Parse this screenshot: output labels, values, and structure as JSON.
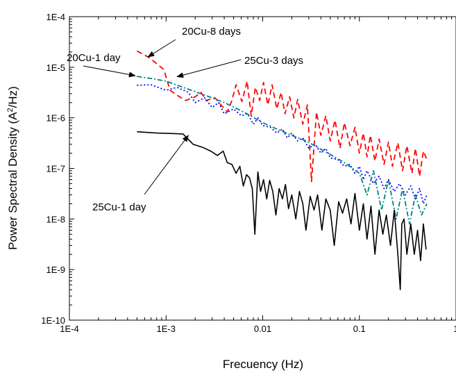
{
  "chart_data": {
    "type": "line",
    "xlabel": "Frecuency (Hz)",
    "ylabel": "Power Spectral Density (A²/Hz)",
    "ylabel_base": "Power Spectral Density (A",
    "ylabel_sup": "2",
    "ylabel_tail": "/Hz)",
    "xscale": "log",
    "yscale": "log",
    "xlim": [
      0.0001,
      1
    ],
    "ylim": [
      1e-10,
      0.0001
    ],
    "grid": false,
    "x_ticks": [
      {
        "value": 0.0001,
        "label": "1E-4"
      },
      {
        "value": 0.001,
        "label": "1E-3"
      },
      {
        "value": 0.01,
        "label": "0.01"
      },
      {
        "value": 0.1,
        "label": "0.1"
      },
      {
        "value": 1,
        "label": "1"
      }
    ],
    "y_ticks": [
      {
        "value": 1e-10,
        "label": "1E-10"
      },
      {
        "value": 1e-09,
        "label": "1E-9"
      },
      {
        "value": 1e-08,
        "label": "1E-8"
      },
      {
        "value": 1e-07,
        "label": "1E-7"
      },
      {
        "value": 1e-06,
        "label": "1E-6"
      },
      {
        "value": 1e-05,
        "label": "1E-5"
      },
      {
        "value": 0.0001,
        "label": "1E-4"
      }
    ],
    "series": [
      {
        "name": "20Cu-8 days",
        "color": "#ff0000",
        "dash": "dash",
        "x": [
          0.0005,
          0.00065,
          0.00075,
          0.00095,
          0.0011,
          0.0013,
          0.0016,
          0.002,
          0.0023,
          0.0026,
          0.0032,
          0.0037,
          0.0043,
          0.0048,
          0.0053,
          0.0061,
          0.0069,
          0.0076,
          0.0084,
          0.0093,
          0.0102,
          0.0113,
          0.0125,
          0.014,
          0.0155,
          0.017,
          0.019,
          0.021,
          0.023,
          0.026,
          0.029,
          0.032,
          0.036,
          0.04,
          0.045,
          0.05,
          0.056,
          0.063,
          0.07,
          0.08,
          0.09,
          0.1,
          0.11,
          0.12,
          0.13,
          0.145,
          0.16,
          0.18,
          0.2,
          0.22,
          0.25,
          0.28,
          0.31,
          0.35,
          0.38,
          0.42,
          0.46,
          0.5
        ],
        "y": [
          2.1e-05,
          1.6e-05,
          1.3e-05,
          9e-06,
          3.5e-06,
          2.8e-06,
          2.2e-06,
          2.6e-06,
          3.2e-06,
          2.2e-06,
          2.5e-06,
          1.8e-06,
          1.3e-06,
          2.2e-06,
          4.5e-06,
          2.1e-06,
          5.3e-06,
          1.1e-06,
          4e-06,
          2.2e-06,
          5e-06,
          1.8e-06,
          4.5e-06,
          1.5e-06,
          3.2e-06,
          1.2e-06,
          2.6e-06,
          1e-06,
          2.3e-06,
          7.5e-07,
          1.8e-06,
          5.5e-08,
          1.3e-06,
          4.5e-07,
          1.1e-06,
          3.5e-07,
          9e-07,
          2.5e-07,
          8e-07,
          2.8e-07,
          6.5e-07,
          2e-07,
          5e-07,
          1.7e-07,
          4.5e-07,
          1.4e-07,
          3.8e-07,
          1.2e-07,
          3.3e-07,
          1.1e-07,
          3.2e-07,
          9e-08,
          2.8e-07,
          8e-08,
          2.5e-07,
          7e-08,
          2.2e-07,
          1.5e-07
        ]
      },
      {
        "name": "25Cu-3 days",
        "color": "#0000ff",
        "dash": "dot",
        "x": [
          0.0005,
          0.0007,
          0.001,
          0.0013,
          0.0017,
          0.002,
          0.0025,
          0.003,
          0.0035,
          0.004,
          0.005,
          0.006,
          0.007,
          0.008,
          0.009,
          0.01,
          0.012,
          0.014,
          0.016,
          0.018,
          0.02,
          0.023,
          0.026,
          0.03,
          0.035,
          0.04,
          0.045,
          0.05,
          0.06,
          0.07,
          0.08,
          0.09,
          0.1,
          0.11,
          0.12,
          0.14,
          0.16,
          0.18,
          0.2,
          0.23,
          0.26,
          0.3,
          0.34,
          0.38,
          0.42,
          0.46,
          0.5
        ],
        "y": [
          4.4e-06,
          4.5e-06,
          3.5e-06,
          4e-06,
          3.2e-06,
          2e-06,
          2.5e-06,
          1.6e-06,
          2e-06,
          1.2e-06,
          1.5e-06,
          1.1e-06,
          1.2e-06,
          7.5e-07,
          1e-06,
          7e-07,
          6.5e-07,
          5e-07,
          6e-07,
          4e-07,
          5e-07,
          3.5e-07,
          4e-07,
          2.5e-07,
          3e-07,
          2e-07,
          2.5e-07,
          1.6e-07,
          1.5e-07,
          1.1e-07,
          1.2e-07,
          8e-08,
          1.1e-07,
          6e-08,
          9e-08,
          5e-08,
          7e-08,
          4e-08,
          6e-08,
          3.5e-08,
          5e-08,
          3e-08,
          4.5e-08,
          2.5e-08,
          4e-08,
          2e-08,
          3e-08
        ]
      },
      {
        "name": "20Cu-1 day",
        "color": "#008080",
        "dash": "dashdot",
        "x": [
          0.0005,
          0.0007,
          0.001,
          0.0014,
          0.002,
          0.0028,
          0.004,
          0.0055,
          0.0075,
          0.01,
          0.014,
          0.02,
          0.028,
          0.04,
          0.055,
          0.07,
          0.085,
          0.1,
          0.12,
          0.14,
          0.17,
          0.2,
          0.24,
          0.28,
          0.33,
          0.38,
          0.44,
          0.5
        ],
        "y": [
          6.6e-06,
          6e-06,
          5.3e-06,
          4.2e-06,
          3.3e-06,
          2.6e-06,
          2e-06,
          1.5e-06,
          1.1e-06,
          8e-07,
          6e-07,
          4.5e-07,
          3.5e-07,
          2.4e-07,
          1.7e-07,
          1.3e-07,
          1e-07,
          8e-08,
          3e-08,
          9e-08,
          1.5e-08,
          6e-08,
          1e-08,
          4e-08,
          8e-09,
          3e-08,
          1.2e-08,
          2e-08
        ]
      },
      {
        "name": "25Cu-1 day",
        "color": "#000000",
        "dash": "solid",
        "x": [
          0.0005,
          0.0008,
          0.0011,
          0.0015,
          0.0019,
          0.0024,
          0.0029,
          0.0034,
          0.0039,
          0.0043,
          0.0048,
          0.0053,
          0.0058,
          0.0063,
          0.0068,
          0.0073,
          0.0078,
          0.0083,
          0.0089,
          0.0095,
          0.0102,
          0.011,
          0.0118,
          0.0127,
          0.0137,
          0.0148,
          0.016,
          0.0172,
          0.0185,
          0.02,
          0.022,
          0.024,
          0.026,
          0.028,
          0.031,
          0.034,
          0.037,
          0.041,
          0.045,
          0.05,
          0.055,
          0.061,
          0.067,
          0.074,
          0.082,
          0.09,
          0.1,
          0.11,
          0.12,
          0.132,
          0.145,
          0.16,
          0.175,
          0.19,
          0.21,
          0.23,
          0.25,
          0.265,
          0.275,
          0.29,
          0.31,
          0.34,
          0.37,
          0.4,
          0.43,
          0.46,
          0.49
        ],
        "y": [
          5.3e-07,
          5e-07,
          4.9e-07,
          4.8e-07,
          3e-07,
          2.6e-07,
          2.2e-07,
          1.8e-07,
          2.2e-07,
          1.3e-07,
          1.2e-07,
          8e-08,
          1.1e-07,
          4.5e-08,
          7.5e-08,
          6.5e-08,
          4e-08,
          5e-09,
          8.5e-08,
          3.5e-08,
          6e-08,
          2.5e-08,
          5.8e-08,
          3.5e-08,
          1.2e-08,
          4e-08,
          2.5e-08,
          4.8e-08,
          1.6e-08,
          3e-08,
          1e-08,
          3.5e-08,
          2e-08,
          6e-09,
          2.8e-08,
          1.5e-08,
          3e-08,
          6e-09,
          2.5e-08,
          1.5e-08,
          3e-09,
          2.2e-08,
          1.3e-08,
          2.5e-08,
          8e-09,
          3.2e-08,
          6e-09,
          2e-08,
          4e-09,
          1.8e-08,
          2e-09,
          1.5e-08,
          5e-09,
          1.2e-08,
          3e-09,
          1.5e-08,
          2e-09,
          4e-10,
          8e-09,
          1e-08,
          2e-09,
          8e-09,
          2e-09,
          6e-09,
          1.5e-09,
          8e-09,
          2.5e-09
        ]
      }
    ],
    "annotations": [
      {
        "text": "20Cu-8 days",
        "arrow_to": [
          0.00065,
          1.6e-05
        ]
      },
      {
        "text": "20Cu-1 day",
        "arrow_to": [
          0.00048,
          6.8e-06
        ]
      },
      {
        "text": "25Cu-3 days",
        "arrow_to": [
          0.0013,
          6.5e-06
        ]
      },
      {
        "text": "25Cu-1 day",
        "arrow_to": [
          0.0017,
          4.5e-07
        ]
      }
    ]
  }
}
